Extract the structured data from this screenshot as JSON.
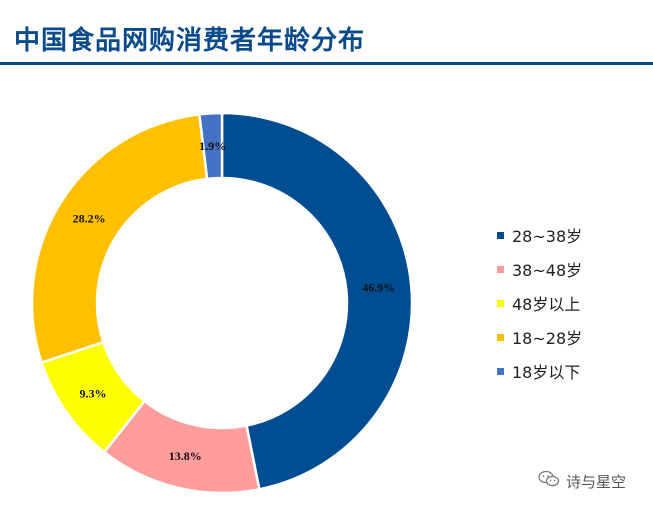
{
  "header": {
    "title": "中国食品网购消费者年龄分布"
  },
  "watermark": {
    "text": "诗与星空",
    "icon": "wechat-icon"
  },
  "chart_data": {
    "type": "pie",
    "variant": "donut",
    "title": "",
    "start_angle_deg": 0,
    "direction": "clockwise",
    "slices": [
      {
        "label": "28~38岁",
        "value": 46.9,
        "value_label": "46.9%",
        "color": "#004d91"
      },
      {
        "label": "38~48岁",
        "value": 13.8,
        "value_label": "13.8%",
        "color": "#ff9c9c"
      },
      {
        "label": "48岁以上",
        "value": 9.3,
        "value_label": "9.3%",
        "color": "#ffff00"
      },
      {
        "label": "18~28岁",
        "value": 28.2,
        "value_label": "28.2%",
        "color": "#ffc000"
      },
      {
        "label": "18岁以下",
        "value": 1.9,
        "value_label": "1.9%",
        "color": "#4472c4"
      }
    ],
    "legend": {
      "position": "right",
      "entries": [
        "28~38岁",
        "38~48岁",
        "48岁以上",
        "18~28岁",
        "18岁以下"
      ]
    }
  }
}
